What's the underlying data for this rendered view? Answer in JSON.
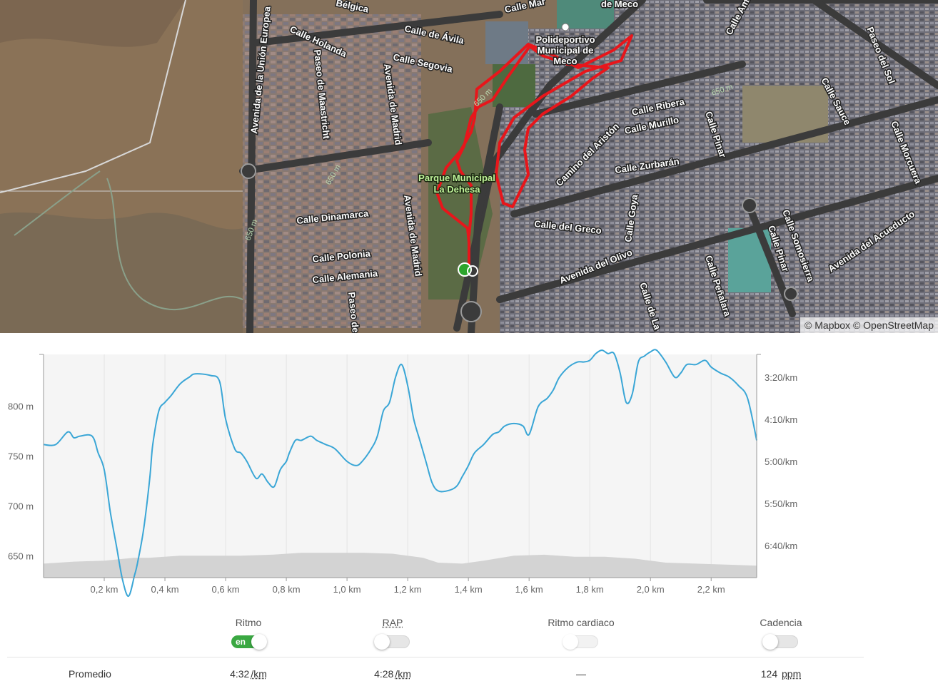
{
  "map": {
    "attribution_mapbox": "© Mapbox",
    "attribution_osm": "© OpenStreetMap",
    "street_labels": [
      {
        "text": "Calle de Ávila"
      },
      {
        "text": "Calle Segovia"
      },
      {
        "text": "Calle Holanda"
      },
      {
        "text": "Bélgica"
      },
      {
        "text": "Calle Mar"
      },
      {
        "text": "de Meco"
      },
      {
        "text": "Avenida de la Unión Europea"
      },
      {
        "text": "Paseo de Maastricht"
      },
      {
        "text": "Avenida de Madrid"
      },
      {
        "text": "Calle Dinamarca"
      },
      {
        "text": "Calle Polonia"
      },
      {
        "text": "Calle Alemania"
      },
      {
        "text": "Paseo de"
      },
      {
        "text": "Calle Ribera"
      },
      {
        "text": "Calle Murillo"
      },
      {
        "text": "Calle Zurbarán"
      },
      {
        "text": "Camino del Aristón"
      },
      {
        "text": "Calle del Greco"
      },
      {
        "text": "Calle Goya"
      },
      {
        "text": "Avenida del Olivo"
      },
      {
        "text": "Calle Pinar"
      },
      {
        "text": "Calle Sauce"
      },
      {
        "text": "Paseo del Sol"
      },
      {
        "text": "Calle Morcuera"
      },
      {
        "text": "Calle Somosierra"
      },
      {
        "text": "Avenida del Acueducto"
      },
      {
        "text": "Calle Peñalara"
      },
      {
        "text": "Calle de La"
      },
      {
        "text": "Calle Ama"
      }
    ],
    "poi_labels": [
      {
        "text": "Polideportivo"
      },
      {
        "text": "Municipal de"
      },
      {
        "text": "Meco"
      },
      {
        "text": "Parque Municipal"
      },
      {
        "text": "La Dehesa"
      }
    ],
    "contour_labels": [
      "650 m",
      "650 m",
      "650 m",
      "650 m"
    ],
    "route_color": "#e8161b",
    "start_marker_color": "#2ca52c"
  },
  "chart_data": {
    "type": "line",
    "x_unit": "km",
    "xlim": [
      0,
      2.35
    ],
    "x_ticks": [
      "0,2 km",
      "0,4 km",
      "0,6 km",
      "0,8 km",
      "1,0 km",
      "1,2 km",
      "1,4 km",
      "1,6 km",
      "1,8 km",
      "2,0 km",
      "2,2 km"
    ],
    "y_left_ticks": [
      "800 m",
      "750 m",
      "700 m",
      "650 m"
    ],
    "y_left_tick_values": [
      800,
      750,
      700,
      650
    ],
    "y_left_lim": [
      628,
      852
    ],
    "y_right_ticks": [
      "3:20/km",
      "4:10/km",
      "5:00/km",
      "5:50/km",
      "6:40/km"
    ],
    "y_right_tick_values": [
      200,
      250,
      300,
      350,
      400
    ],
    "y_right_lim": [
      173,
      438
    ],
    "series": [
      {
        "type": "area",
        "axis": "left",
        "color": "#d3d3d3",
        "x": [
          0,
          0.1,
          0.2,
          0.3,
          0.35,
          0.45,
          0.55,
          0.65,
          0.75,
          0.85,
          0.95,
          1.05,
          1.15,
          1.25,
          1.3,
          1.38,
          1.45,
          1.55,
          1.65,
          1.75,
          1.85,
          1.95,
          2.05,
          2.15,
          2.25,
          2.35
        ],
        "values": [
          642,
          644,
          645,
          648,
          648,
          650,
          650,
          650,
          651,
          653,
          653,
          653,
          652,
          648,
          643,
          642,
          645,
          650,
          651,
          649,
          649,
          647,
          643,
          642,
          641,
          640
        ]
      },
      {
        "type": "line",
        "axis": "right",
        "color": "#3aa6d6",
        "x": [
          0,
          0.04,
          0.08,
          0.1,
          0.12,
          0.16,
          0.18,
          0.2,
          0.22,
          0.24,
          0.26,
          0.28,
          0.3,
          0.31,
          0.33,
          0.35,
          0.36,
          0.38,
          0.4,
          0.42,
          0.45,
          0.48,
          0.5,
          0.55,
          0.58,
          0.6,
          0.63,
          0.65,
          0.67,
          0.7,
          0.72,
          0.74,
          0.76,
          0.78,
          0.8,
          0.81,
          0.83,
          0.85,
          0.88,
          0.9,
          0.93,
          0.96,
          1.0,
          1.03,
          1.05,
          1.08,
          1.1,
          1.12,
          1.14,
          1.16,
          1.18,
          1.2,
          1.22,
          1.24,
          1.26,
          1.28,
          1.3,
          1.33,
          1.36,
          1.38,
          1.4,
          1.42,
          1.45,
          1.48,
          1.5,
          1.52,
          1.55,
          1.58,
          1.6,
          1.63,
          1.66,
          1.68,
          1.7,
          1.73,
          1.76,
          1.78,
          1.8,
          1.82,
          1.84,
          1.86,
          1.88,
          1.9,
          1.92,
          1.94,
          1.96,
          1.98,
          2.0,
          2.02,
          2.05,
          2.08,
          2.1,
          2.12,
          2.15,
          2.18,
          2.2,
          2.23,
          2.26,
          2.29,
          2.32,
          2.35
        ],
        "values": [
          280,
          280,
          265,
          272,
          270,
          270,
          290,
          310,
          360,
          400,
          440,
          460,
          435,
          420,
          380,
          320,
          280,
          240,
          230,
          222,
          208,
          200,
          196,
          198,
          205,
          250,
          285,
          290,
          300,
          320,
          315,
          325,
          330,
          310,
          300,
          290,
          275,
          275,
          270,
          275,
          280,
          285,
          300,
          305,
          300,
          285,
          270,
          240,
          230,
          200,
          185,
          210,
          250,
          275,
          300,
          325,
          335,
          335,
          330,
          318,
          305,
          290,
          280,
          268,
          265,
          258,
          255,
          258,
          268,
          235,
          225,
          215,
          200,
          188,
          182,
          182,
          180,
          172,
          168,
          172,
          172,
          195,
          230,
          220,
          182,
          175,
          170,
          168,
          182,
          200,
          195,
          185,
          185,
          180,
          188,
          195,
          200,
          210,
          225,
          275
        ]
      }
    ],
    "grid": "vertical"
  },
  "metrics": {
    "pace": {
      "label": "Ritmo",
      "toggle_text": "en",
      "on": true
    },
    "gap": {
      "label": "RAP",
      "on": false
    },
    "heart_rate": {
      "label": "Ritmo cardiaco",
      "on": false
    },
    "cadence": {
      "label": "Cadencia",
      "on": false
    }
  },
  "averages": {
    "row_label": "Promedio",
    "pace_value": "4:32",
    "pace_unit": "/km",
    "gap_value": "4:28",
    "gap_unit": "/km",
    "heart_rate_value": "—",
    "cadence_value": "124",
    "cadence_unit": "ppm"
  }
}
